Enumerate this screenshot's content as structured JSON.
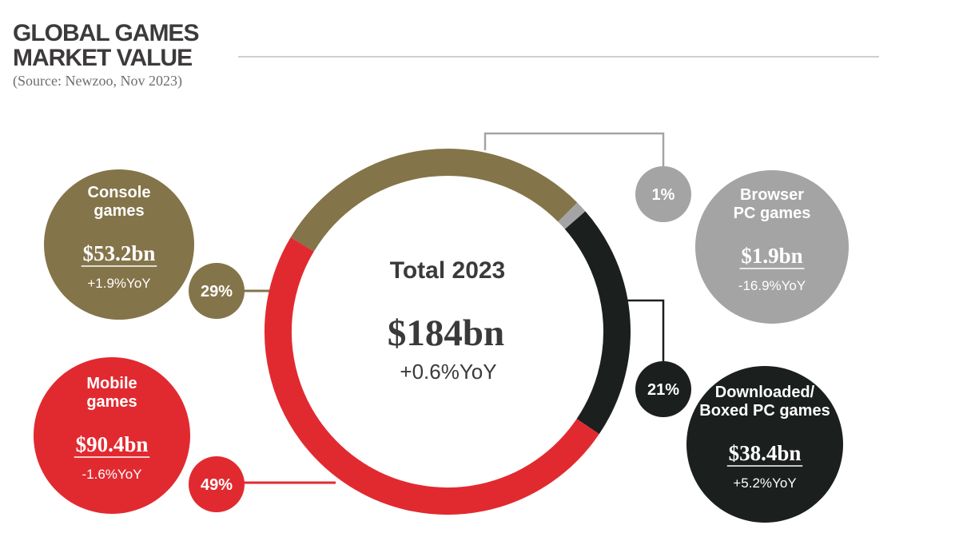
{
  "title": "GLOBAL GAMES MARKET VALUE",
  "source": "(Source: Newzoo, Nov 2023)",
  "center": {
    "heading": "Total 2023",
    "value": "$184bn",
    "yoy": "+0.6%YoY"
  },
  "colors": {
    "console": "#84744a",
    "browser": "#a4a4a4",
    "downloaded": "#1b1f1e",
    "mobile": "#e12a30",
    "connector_light": "#a4a4a4",
    "connector_dark": "#1b1f1e"
  },
  "chart_data": {
    "type": "pie",
    "title": "GLOBAL GAMES MARKET VALUE",
    "segments": [
      {
        "key": "console",
        "label_lines": [
          "Console",
          "games"
        ],
        "value": "$53.2bn",
        "value_bn": 53.2,
        "yoy": "+1.9%YoY",
        "share": "29%",
        "share_pct": 29
      },
      {
        "key": "browser",
        "label_lines": [
          "Browser",
          "PC games"
        ],
        "value": "$1.9bn",
        "value_bn": 1.9,
        "yoy": "-16.9%YoY",
        "share": "1%",
        "share_pct": 1
      },
      {
        "key": "downloaded",
        "label_lines": [
          "Downloaded/",
          "Boxed PC games"
        ],
        "value": "$38.4bn",
        "value_bn": 38.4,
        "yoy": "+5.2%YoY",
        "share": "21%",
        "share_pct": 21
      },
      {
        "key": "mobile",
        "label_lines": [
          "Mobile",
          "games"
        ],
        "value": "$90.4bn",
        "value_bn": 90.4,
        "yoy": "-1.6%YoY",
        "share": "49%",
        "share_pct": 49
      }
    ]
  }
}
